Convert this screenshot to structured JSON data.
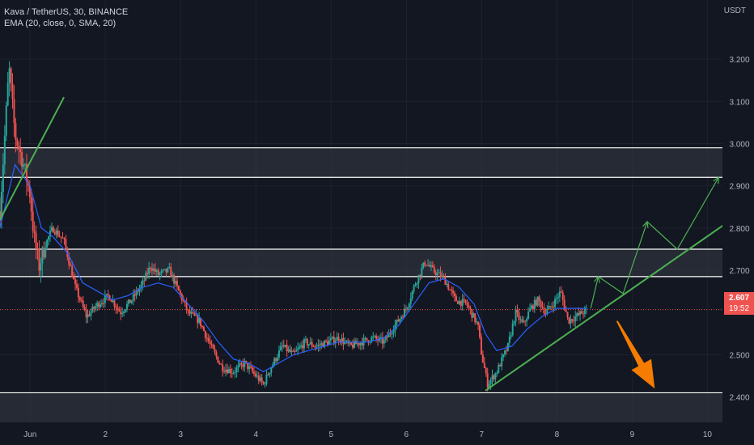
{
  "header": {
    "symbol_line": "Kava / TetherUS, 30, BINANCE",
    "indicator_line": "EMA (20, close, 0, SMA, 20)",
    "unit": "USDT"
  },
  "last_price": {
    "value": "2.607",
    "countdown": "19:52"
  },
  "colors": {
    "background": "#131722",
    "up": "#26a69a",
    "down": "#ef5350",
    "ema": "#2962ff",
    "trendline": "#4caf50",
    "arrow": "#f57c00",
    "zone_fill": "#363a45",
    "zone_border": "#ffffff",
    "axis_text": "#b2b5be"
  },
  "chart_data": {
    "type": "candlestick",
    "title": "Kava / TetherUS, 30, BINANCE",
    "indicator": "EMA (20, close, 0, SMA, 20)",
    "y_axis": {
      "ticks": [
        3.2,
        3.1,
        3.0,
        2.9,
        2.8,
        2.7,
        2.5,
        2.4
      ],
      "unit": "USDT",
      "ylim": [
        2.34,
        3.34
      ]
    },
    "x_axis": {
      "ticks": [
        "Jun",
        "2",
        "3",
        "4",
        "5",
        "6",
        "7",
        "8",
        "9",
        "10"
      ],
      "xlim": [
        31.6,
        41.2
      ],
      "tick_positions": [
        32,
        33,
        34,
        35,
        36,
        37,
        38,
        39,
        40,
        41
      ]
    },
    "zones": [
      {
        "from": 2.92,
        "to": 2.99
      },
      {
        "from": 2.685,
        "to": 2.75
      },
      {
        "from": 2.33,
        "to": 2.41
      }
    ],
    "close_path": [
      [
        31.6,
        2.84
      ],
      [
        31.72,
        3.18
      ],
      [
        31.8,
        3.02
      ],
      [
        31.9,
        2.96
      ],
      [
        32.0,
        2.88
      ],
      [
        32.05,
        2.78
      ],
      [
        32.12,
        2.71
      ],
      [
        32.2,
        2.76
      ],
      [
        32.3,
        2.8
      ],
      [
        32.45,
        2.77
      ],
      [
        32.6,
        2.66
      ],
      [
        32.75,
        2.59
      ],
      [
        32.9,
        2.62
      ],
      [
        33.05,
        2.64
      ],
      [
        33.2,
        2.6
      ],
      [
        33.35,
        2.63
      ],
      [
        33.5,
        2.67
      ],
      [
        33.6,
        2.71
      ],
      [
        33.7,
        2.69
      ],
      [
        33.85,
        2.7
      ],
      [
        33.95,
        2.66
      ],
      [
        34.1,
        2.6
      ],
      [
        34.25,
        2.58
      ],
      [
        34.4,
        2.52
      ],
      [
        34.55,
        2.47
      ],
      [
        34.7,
        2.46
      ],
      [
        34.85,
        2.48
      ],
      [
        35.0,
        2.45
      ],
      [
        35.1,
        2.43
      ],
      [
        35.2,
        2.47
      ],
      [
        35.35,
        2.52
      ],
      [
        35.5,
        2.5
      ],
      [
        35.65,
        2.53
      ],
      [
        35.8,
        2.52
      ],
      [
        35.95,
        2.53
      ],
      [
        36.1,
        2.54
      ],
      [
        36.25,
        2.52
      ],
      [
        36.4,
        2.53
      ],
      [
        36.55,
        2.54
      ],
      [
        36.7,
        2.53
      ],
      [
        36.85,
        2.57
      ],
      [
        37.0,
        2.61
      ],
      [
        37.12,
        2.67
      ],
      [
        37.25,
        2.72
      ],
      [
        37.35,
        2.7
      ],
      [
        37.5,
        2.68
      ],
      [
        37.65,
        2.63
      ],
      [
        37.8,
        2.62
      ],
      [
        37.95,
        2.57
      ],
      [
        38.0,
        2.5
      ],
      [
        38.08,
        2.43
      ],
      [
        38.2,
        2.46
      ],
      [
        38.35,
        2.52
      ],
      [
        38.45,
        2.6
      ],
      [
        38.55,
        2.57
      ],
      [
        38.65,
        2.61
      ],
      [
        38.75,
        2.63
      ],
      [
        38.85,
        2.6
      ],
      [
        38.95,
        2.62
      ],
      [
        39.05,
        2.65
      ],
      [
        39.15,
        2.58
      ],
      [
        39.25,
        2.59
      ],
      [
        39.4,
        2.607
      ]
    ],
    "ema_path": [
      [
        31.6,
        2.8
      ],
      [
        31.8,
        2.95
      ],
      [
        32.0,
        2.9
      ],
      [
        32.15,
        2.8
      ],
      [
        32.3,
        2.78
      ],
      [
        32.5,
        2.74
      ],
      [
        32.7,
        2.67
      ],
      [
        32.9,
        2.65
      ],
      [
        33.1,
        2.63
      ],
      [
        33.3,
        2.64
      ],
      [
        33.5,
        2.66
      ],
      [
        33.7,
        2.67
      ],
      [
        33.9,
        2.66
      ],
      [
        34.1,
        2.62
      ],
      [
        34.3,
        2.58
      ],
      [
        34.5,
        2.53
      ],
      [
        34.7,
        2.49
      ],
      [
        34.9,
        2.48
      ],
      [
        35.1,
        2.46
      ],
      [
        35.3,
        2.48
      ],
      [
        35.5,
        2.5
      ],
      [
        35.7,
        2.51
      ],
      [
        35.9,
        2.52
      ],
      [
        36.1,
        2.53
      ],
      [
        36.3,
        2.53
      ],
      [
        36.5,
        2.53
      ],
      [
        36.7,
        2.54
      ],
      [
        36.9,
        2.57
      ],
      [
        37.1,
        2.62
      ],
      [
        37.3,
        2.67
      ],
      [
        37.5,
        2.68
      ],
      [
        37.7,
        2.66
      ],
      [
        37.9,
        2.62
      ],
      [
        38.05,
        2.55
      ],
      [
        38.2,
        2.51
      ],
      [
        38.4,
        2.52
      ],
      [
        38.6,
        2.56
      ],
      [
        38.8,
        2.59
      ],
      [
        39.0,
        2.61
      ],
      [
        39.2,
        2.61
      ],
      [
        39.4,
        2.61
      ]
    ],
    "annotations": {
      "trendlines": [
        {
          "from": [
            31.6,
            2.82
          ],
          "to": [
            32.45,
            3.11
          ]
        },
        {
          "from": [
            38.05,
            2.415
          ],
          "to": [
            41.4,
            2.83
          ]
        }
      ],
      "projection_path": [
        [
          39.45,
          2.61
        ],
        [
          39.55,
          2.685
        ],
        [
          39.88,
          2.645
        ],
        [
          40.2,
          2.815
        ],
        [
          40.6,
          2.75
        ],
        [
          41.15,
          2.92
        ]
      ],
      "bearish_arrow": {
        "from": [
          39.8,
          2.58
        ],
        "to": [
          40.3,
          2.42
        ]
      }
    }
  }
}
